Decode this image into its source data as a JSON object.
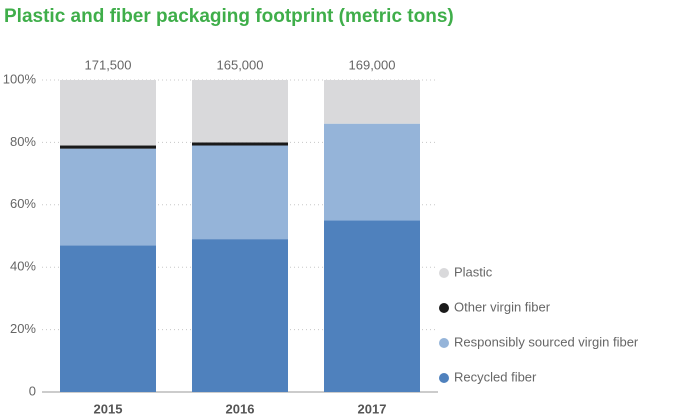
{
  "chart_data": {
    "type": "stacked_bar_percent",
    "title": "Plastic and fiber packaging footprint (metric tons)",
    "categories": [
      "2015",
      "2016",
      "2017"
    ],
    "totals": [
      171500,
      165000,
      169000
    ],
    "total_labels": [
      "171,500",
      "165,000",
      "169,000"
    ],
    "series": [
      {
        "name": "Recycled fiber",
        "color": "#4f81bd",
        "values": [
          47,
          49,
          55
        ]
      },
      {
        "name": "Responsibly sourced virgin fiber",
        "color": "#95b4d9",
        "values": [
          31,
          30,
          31
        ]
      },
      {
        "name": "Other virgin fiber",
        "color": "#1a1a1a",
        "values": [
          1,
          1,
          0
        ]
      },
      {
        "name": "Plastic",
        "color": "#d9d9db",
        "values": [
          21,
          20,
          14
        ]
      }
    ],
    "ylim": [
      0,
      100
    ],
    "yticks": [
      0,
      {
        "value": 20,
        "label": "20%"
      },
      {
        "value": 40,
        "label": "40%"
      },
      {
        "value": 60,
        "label": "60%"
      },
      {
        "value": 80,
        "label": "80%"
      },
      {
        "value": 100,
        "label": "100%"
      }
    ],
    "grid": true
  }
}
